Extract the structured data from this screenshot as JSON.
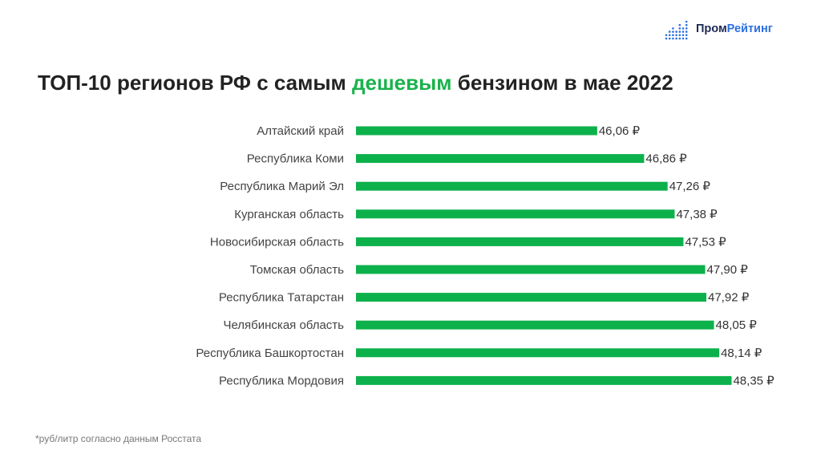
{
  "logo": {
    "part1": "Пром",
    "part2": "Рейтинг",
    "icon": "dot-bars-icon",
    "colors": {
      "dark": "#1d2a55",
      "accent": "#2a6fe0"
    }
  },
  "title": {
    "before": "ТОП-10 регионов РФ с самым ",
    "highlight": "дешевым",
    "after": " бензином в мае 2022"
  },
  "chart_data": {
    "type": "bar",
    "orientation": "horizontal",
    "bar_color": "#0db14b",
    "categories": [
      "Алтайский край",
      "Республика Коми",
      "Республика Марий Эл",
      "Курганская область",
      "Новосибирская область",
      "Томская область",
      "Республика Татарстан",
      "Челябинская область",
      "Республика Башкортостан",
      "Республика Мордовия"
    ],
    "values": [
      46.06,
      46.86,
      47.26,
      47.38,
      47.53,
      47.9,
      47.92,
      48.05,
      48.14,
      48.35
    ],
    "value_labels": [
      "46,06 ₽",
      "46,86 ₽",
      "47,26 ₽",
      "47,38 ₽",
      "47,53 ₽",
      "47,90 ₽",
      "47,92 ₽",
      "48,05 ₽",
      "48,14 ₽",
      "48,35 ₽"
    ],
    "axis_start": 41.95,
    "grid": false,
    "legend": "none"
  },
  "footnote": "*руб/литр согласно данным Росстата"
}
